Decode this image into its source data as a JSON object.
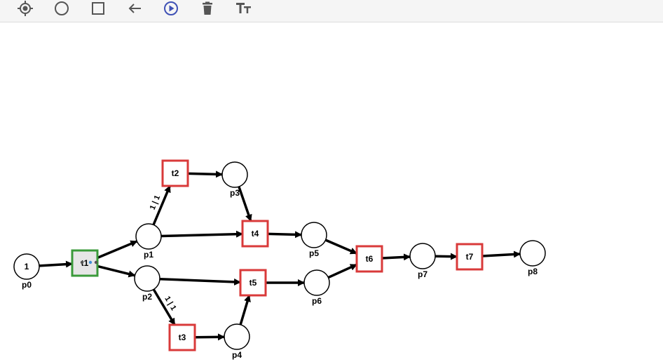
{
  "toolbar": {
    "tools": [
      {
        "id": "token-tool",
        "icon": "crosshair-token-icon"
      },
      {
        "id": "place-tool",
        "icon": "circle-icon"
      },
      {
        "id": "transition-tool",
        "icon": "square-icon"
      },
      {
        "id": "arc-tool",
        "icon": "arrow-left-icon"
      },
      {
        "id": "simulate-tool",
        "icon": "play-circle-icon",
        "active": true
      },
      {
        "id": "delete-tool",
        "icon": "trash-icon"
      },
      {
        "id": "text-tool",
        "icon": "text-size-icon"
      }
    ],
    "active_color": "#3f51b5"
  },
  "net": {
    "places": [
      {
        "id": "p0",
        "label": "p0",
        "tokens": "1"
      },
      {
        "id": "p1",
        "label": "p1"
      },
      {
        "id": "p2",
        "label": "p2"
      },
      {
        "id": "p3",
        "label": "p3"
      },
      {
        "id": "p4",
        "label": "p4"
      },
      {
        "id": "p5",
        "label": "p5"
      },
      {
        "id": "p6",
        "label": "p6"
      },
      {
        "id": "p7",
        "label": "p7"
      },
      {
        "id": "p8",
        "label": "p8"
      }
    ],
    "transitions": [
      {
        "id": "t1",
        "label": "t1",
        "state": "enabled"
      },
      {
        "id": "t2",
        "label": "t2",
        "state": "disabled"
      },
      {
        "id": "t3",
        "label": "t3",
        "state": "disabled"
      },
      {
        "id": "t4",
        "label": "t4",
        "state": "disabled"
      },
      {
        "id": "t5",
        "label": "t5",
        "state": "disabled"
      },
      {
        "id": "t6",
        "label": "t6",
        "state": "disabled"
      },
      {
        "id": "t7",
        "label": "t7",
        "state": "disabled"
      }
    ],
    "arcs": [
      {
        "from": "p0",
        "to": "t1"
      },
      {
        "from": "t1",
        "to": "p1"
      },
      {
        "from": "t1",
        "to": "p2"
      },
      {
        "from": "p1",
        "to": "t2",
        "bidirectional": true,
        "label": "1 | 1"
      },
      {
        "from": "t2",
        "to": "p3"
      },
      {
        "from": "p3",
        "to": "t4"
      },
      {
        "from": "p1",
        "to": "t4"
      },
      {
        "from": "p2",
        "to": "t5"
      },
      {
        "from": "p2",
        "to": "t3",
        "bidirectional": true,
        "label": "1 | 1"
      },
      {
        "from": "t3",
        "to": "p4"
      },
      {
        "from": "p4",
        "to": "t5"
      },
      {
        "from": "t4",
        "to": "p5"
      },
      {
        "from": "t5",
        "to": "p6"
      },
      {
        "from": "p5",
        "to": "t6"
      },
      {
        "from": "p6",
        "to": "t6"
      },
      {
        "from": "t6",
        "to": "p7"
      },
      {
        "from": "p7",
        "to": "t7"
      },
      {
        "from": "t7",
        "to": "p8"
      }
    ],
    "colors": {
      "enabled_border": "#3a9a3a",
      "enabled_fill": "#e6e6e6",
      "disabled_border": "#d93a3a",
      "place_border": "#000000"
    }
  }
}
